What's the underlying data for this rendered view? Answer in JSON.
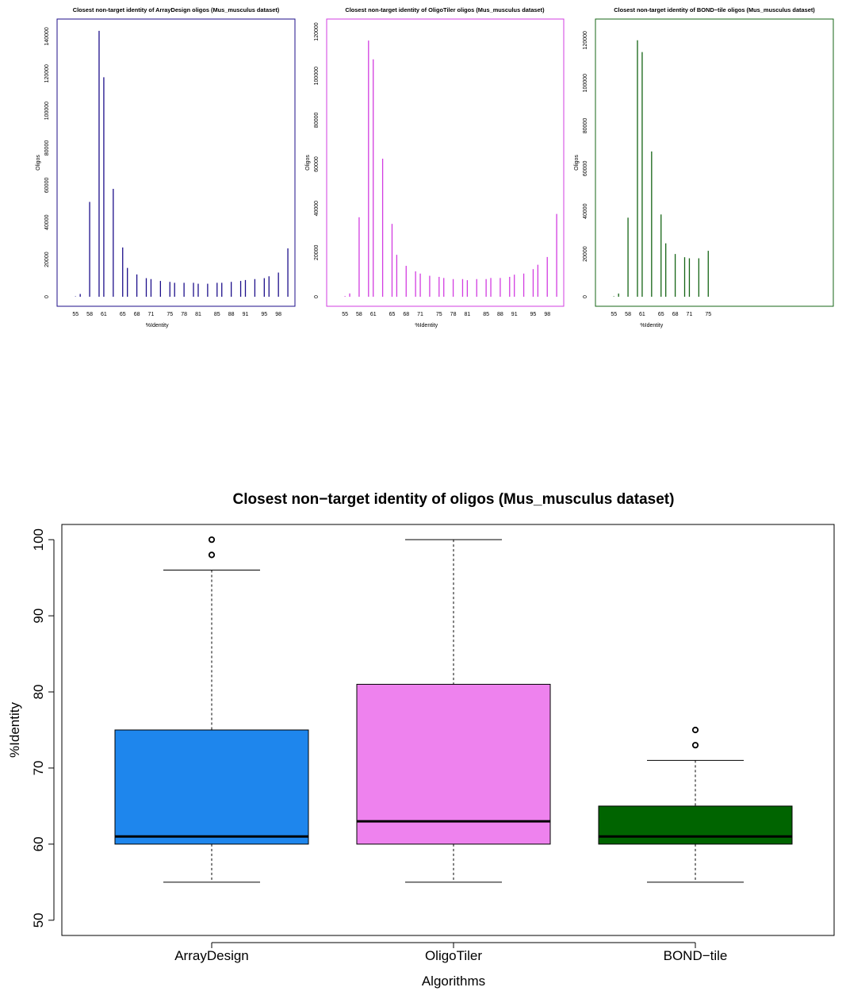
{
  "colors": {
    "ArrayDesign": "#1c0e8a",
    "OligoTiler": "#d23ce0",
    "BOND-tile": "#146414",
    "box_ArrayDesign": "#1e86ed",
    "box_OligoTiler": "#ee82ee",
    "box_BOND-tile": "#006400"
  },
  "chart_data": [
    {
      "type": "bar",
      "title": "Closest non-target identity of ArrayDesign oligos (Mus_musculus dataset)",
      "xlabel": "%Identity",
      "ylabel": "Oligos",
      "xlim": [
        51.1,
        101.5
      ],
      "ylim": [
        0,
        142500
      ],
      "x_tick_labels": [
        "55",
        "58",
        "61",
        "65",
        "68",
        "71",
        "75",
        "78",
        "81",
        "85",
        "88",
        "91",
        "95",
        "98"
      ],
      "y_tick_labels": [
        "0",
        "20000",
        "40000",
        "60000",
        "80000",
        "100000",
        "120000",
        "140000"
      ],
      "x": [
        55,
        56,
        58,
        60,
        61,
        63,
        65,
        66,
        68,
        70,
        71,
        73,
        75,
        76,
        78,
        80,
        81,
        83,
        85,
        86,
        88,
        90,
        91,
        93,
        95,
        96,
        98,
        100
      ],
      "values": [
        200,
        1500,
        51000,
        143000,
        118000,
        58000,
        26500,
        15500,
        12000,
        10000,
        9500,
        8500,
        8000,
        7500,
        7500,
        7500,
        7000,
        7000,
        7500,
        7500,
        8000,
        8500,
        9000,
        9500,
        10000,
        11000,
        13000,
        26000
      ]
    },
    {
      "type": "bar",
      "title": "Closest non-target identity of OligoTiler oligos (Mus_musculus dataset)",
      "xlabel": "%Identity",
      "ylabel": "Oligos",
      "xlim": [
        51.1,
        101.5
      ],
      "ylim": [
        0,
        120000
      ],
      "x_tick_labels": [
        "55",
        "58",
        "61",
        "65",
        "68",
        "71",
        "75",
        "78",
        "81",
        "85",
        "88",
        "91",
        "95",
        "98"
      ],
      "y_tick_labels": [
        "0",
        "20000",
        "40000",
        "60000",
        "80000",
        "100000",
        "120000"
      ],
      "x": [
        55,
        56,
        58,
        60,
        61,
        63,
        65,
        66,
        68,
        70,
        71,
        73,
        75,
        76,
        78,
        80,
        81,
        83,
        85,
        86,
        88,
        90,
        91,
        93,
        95,
        96,
        98,
        100
      ],
      "values": [
        300,
        1500,
        36000,
        116000,
        107500,
        62500,
        33000,
        19000,
        14000,
        11500,
        10500,
        9500,
        9000,
        8500,
        8000,
        8000,
        7500,
        8000,
        8000,
        8500,
        8500,
        9000,
        10000,
        10500,
        12500,
        14500,
        18000,
        37500
      ]
    },
    {
      "type": "bar",
      "title": "Closest non-target identity of BOND−tile oligos (Mus_musculus dataset)",
      "xlabel": "%Identity",
      "ylabel": "Oligos",
      "xlim": [
        51.1,
        101.5
      ],
      "ylim": [
        0,
        124000
      ],
      "x_tick_labels": [
        "55",
        "58",
        "61",
        "65",
        "68",
        "71",
        "75"
      ],
      "y_tick_labels": [
        "0",
        "20000",
        "40000",
        "60000",
        "80000",
        "100000",
        "120000"
      ],
      "x": [
        55,
        56,
        58,
        60,
        61,
        63,
        65,
        66,
        68,
        70,
        71,
        73,
        75
      ],
      "values": [
        200,
        1500,
        37000,
        120000,
        114500,
        68000,
        38500,
        25000,
        20000,
        18500,
        18000,
        18000,
        21500
      ]
    },
    {
      "type": "box",
      "title": "Closest non−target identity of oligos (Mus_musculus dataset)",
      "xlabel": "Algorithms",
      "ylabel": "%Identity",
      "ylim": [
        48,
        102
      ],
      "y_tick_labels": [
        "50",
        "60",
        "70",
        "80",
        "90",
        "100"
      ],
      "categories": [
        "ArrayDesign",
        "OligoTiler",
        "BOND−tile"
      ],
      "boxes": [
        {
          "whisker_low": 55,
          "q1": 60,
          "median": 61,
          "q3": 75,
          "whisker_high": 96,
          "outliers": [
            98,
            100
          ]
        },
        {
          "whisker_low": 55,
          "q1": 60,
          "median": 63,
          "q3": 81,
          "whisker_high": 100,
          "outliers": []
        },
        {
          "whisker_low": 55,
          "q1": 60,
          "median": 61,
          "q3": 65,
          "whisker_high": 71,
          "outliers": [
            73,
            75
          ]
        }
      ]
    }
  ]
}
